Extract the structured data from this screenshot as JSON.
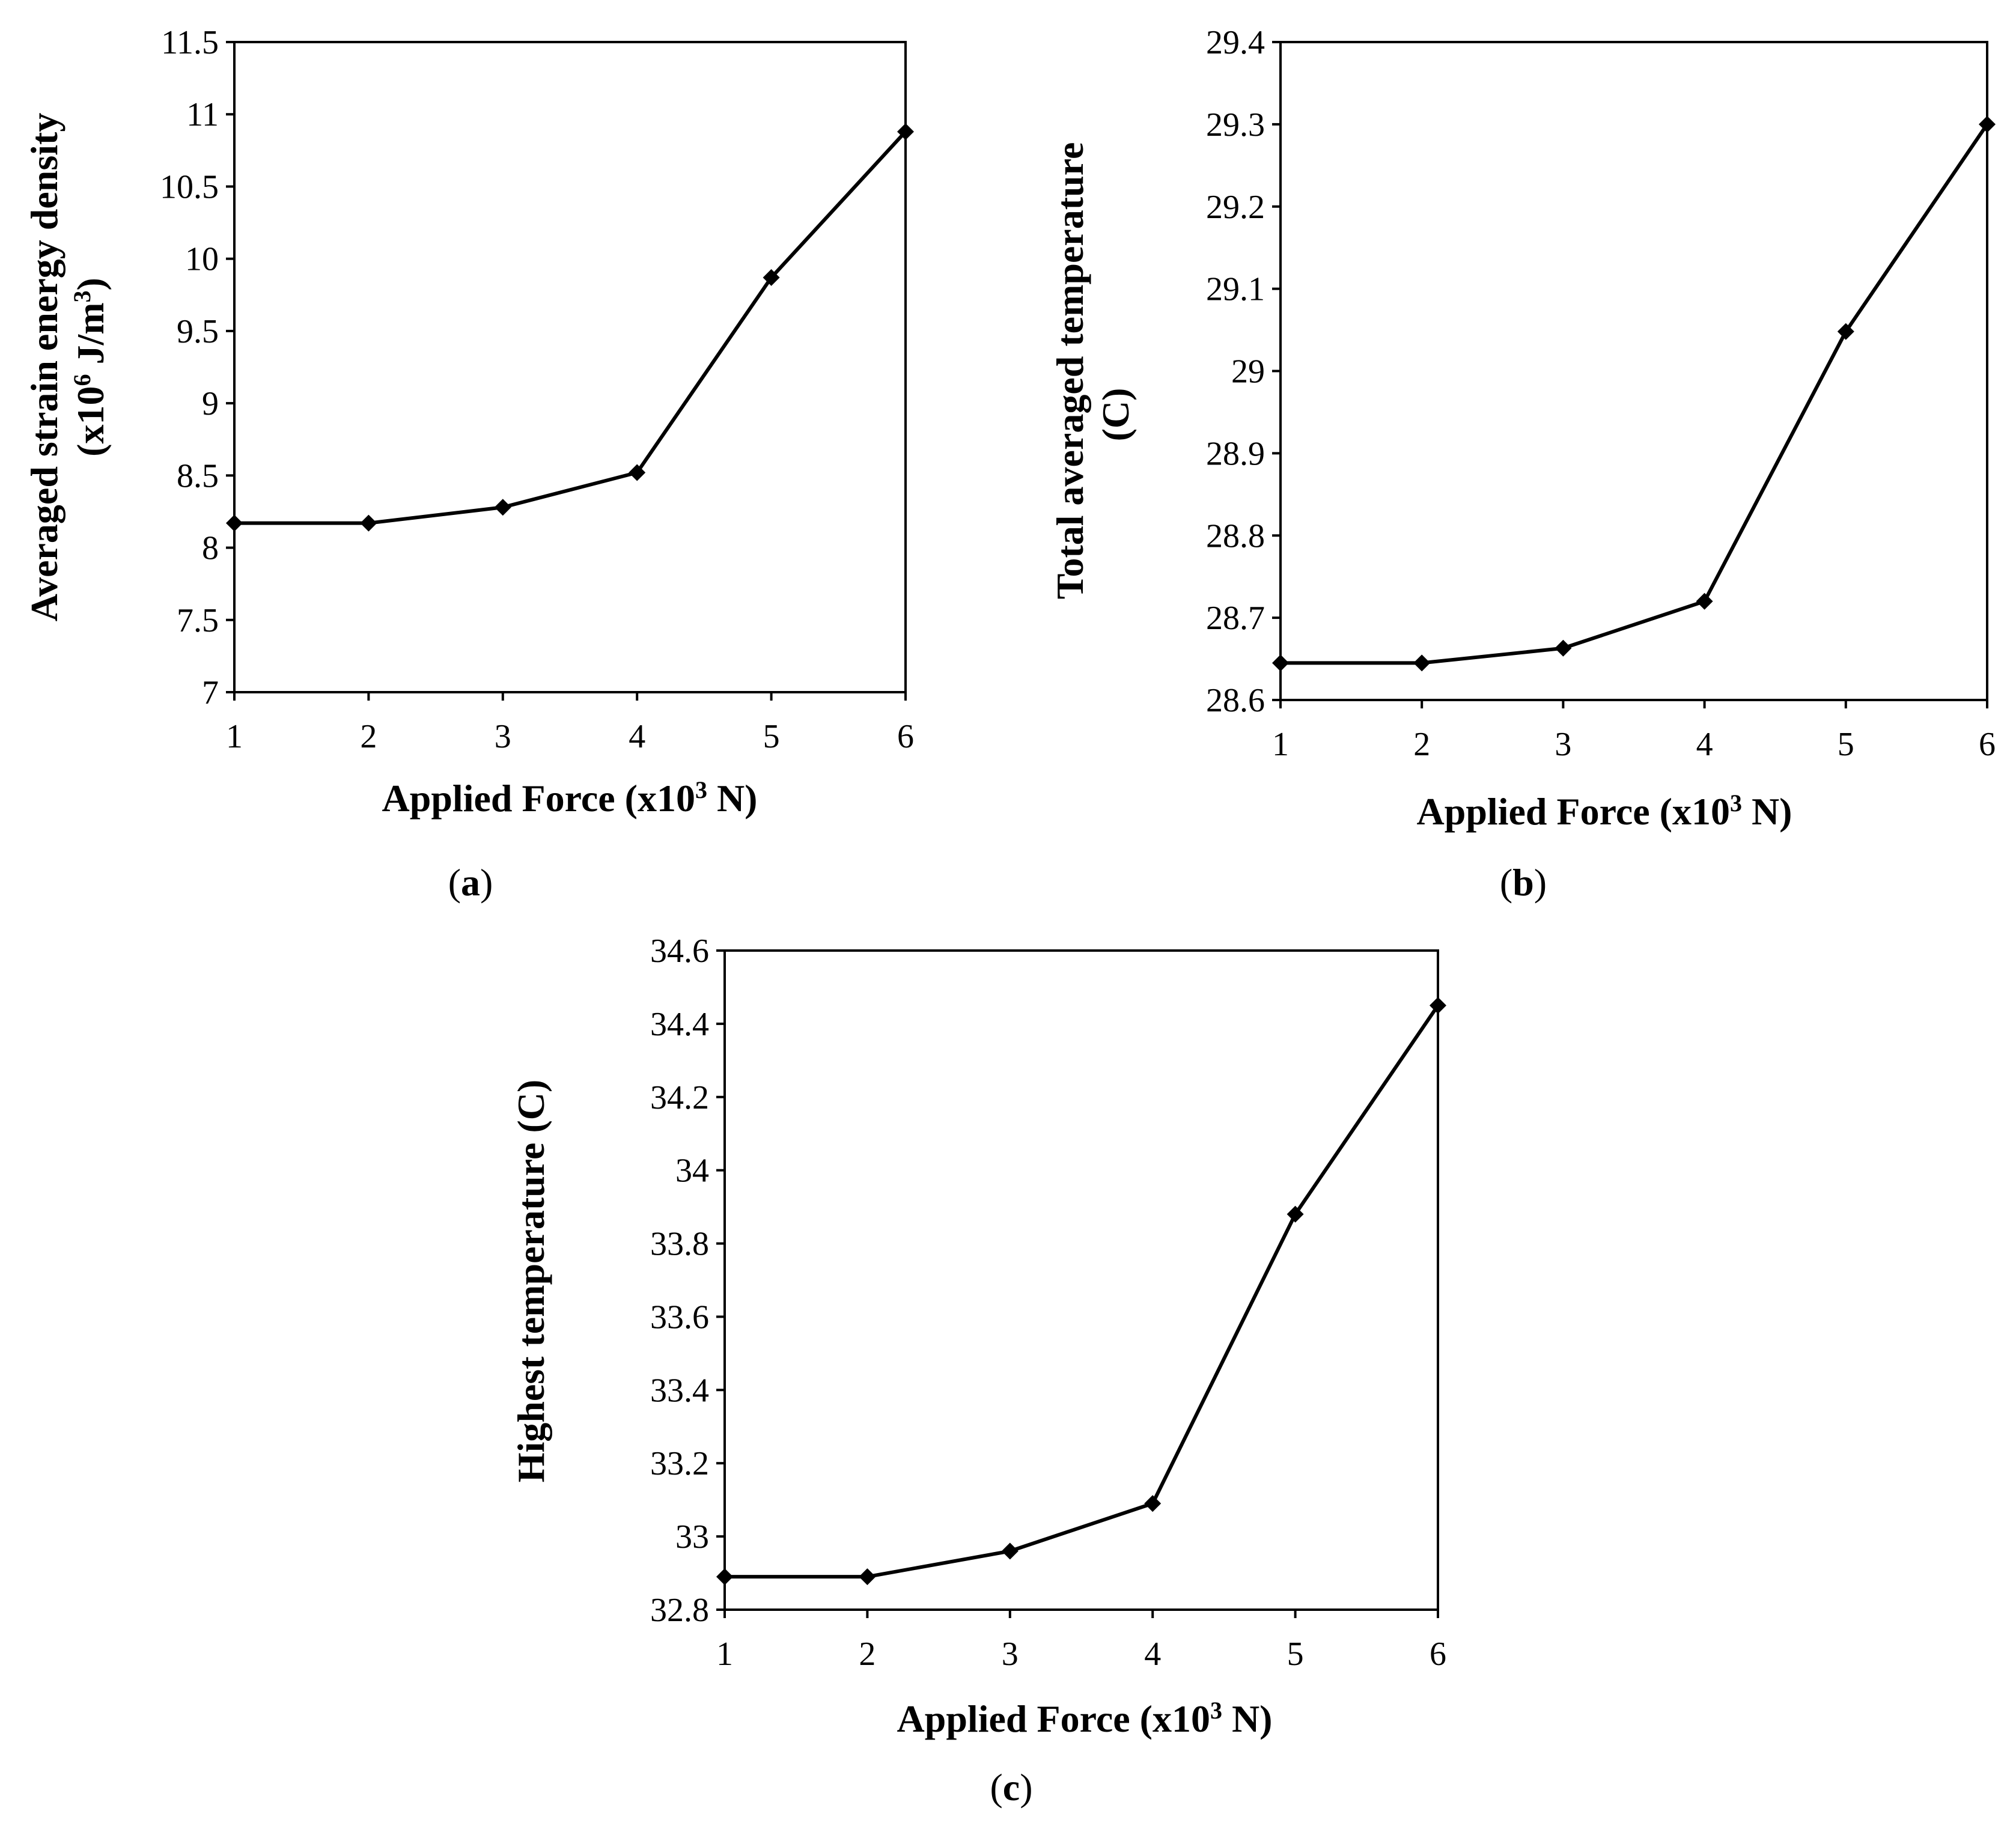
{
  "figure": {
    "panels": [
      {
        "label_open": "(",
        "letter": "a",
        "label_close": ")"
      },
      {
        "label_open": "(",
        "letter": "b",
        "label_close": ")"
      },
      {
        "label_open": "(",
        "letter": "c",
        "label_close": ")"
      }
    ]
  },
  "chart_data": [
    {
      "type": "line",
      "panel": "a",
      "x": [
        1,
        2,
        3,
        4,
        5,
        6
      ],
      "x_tick_labels": [
        "1",
        "2",
        "3",
        "4",
        "5",
        "6"
      ],
      "xlim": [
        1,
        6
      ],
      "xlabel": {
        "prefix": "Applied Force (x10",
        "superscript": "3",
        "suffix": " N)"
      },
      "series": [
        {
          "name": "Averaged strain energy density",
          "values": [
            8.17,
            8.17,
            8.28,
            8.52,
            9.87,
            10.88
          ],
          "color": "#000000",
          "marker": "diamond"
        }
      ],
      "ylim": [
        7,
        11.5
      ],
      "y_ticks": [
        7,
        7.5,
        8,
        8.5,
        9,
        9.5,
        10,
        10.5,
        11,
        11.5
      ],
      "y_tick_labels": [
        "7",
        "7.5",
        "8",
        "8.5",
        "9",
        "9.5",
        "10",
        "10.5",
        "11",
        "11.5"
      ],
      "ylabel_line1": "Averaged strain energy density",
      "ylabel_line2": {
        "prefix": "(x10",
        "superscript1": "6",
        "middle": " J/m",
        "superscript2": "3",
        "suffix": ")"
      },
      "grid": false
    },
    {
      "type": "line",
      "panel": "b",
      "x": [
        1,
        2,
        3,
        4,
        5,
        6
      ],
      "x_tick_labels": [
        "1",
        "2",
        "3",
        "4",
        "5",
        "6"
      ],
      "xlim": [
        1,
        6
      ],
      "xlabel": {
        "prefix": "Applied Force (x10",
        "superscript": "3",
        "suffix": " N)"
      },
      "series": [
        {
          "name": "Total averaged temperature",
          "values": [
            28.645,
            28.645,
            28.663,
            28.72,
            29.048,
            29.3
          ],
          "color": "#000000",
          "marker": "diamond"
        }
      ],
      "ylim": [
        28.6,
        29.4
      ],
      "y_ticks": [
        28.6,
        28.7,
        28.8,
        28.9,
        29,
        29.1,
        29.2,
        29.3,
        29.4
      ],
      "y_tick_labels": [
        "28.6",
        "28.7",
        "28.8",
        "28.9",
        "29",
        "29.1",
        "29.2",
        "29.3",
        "29.4"
      ],
      "ylabel_line1": "Total averaged temperature",
      "ylabel_line2": "(C)",
      "grid": false
    },
    {
      "type": "line",
      "panel": "c",
      "x": [
        1,
        2,
        3,
        4,
        5,
        6
      ],
      "x_tick_labels": [
        "1",
        "2",
        "3",
        "4",
        "5",
        "6"
      ],
      "xlim": [
        1,
        6
      ],
      "xlabel": {
        "prefix": "Applied Force (x10",
        "superscript": "3",
        "suffix": " N)"
      },
      "series": [
        {
          "name": "Highest temperature",
          "values": [
            32.89,
            32.89,
            32.96,
            33.09,
            33.88,
            34.45
          ],
          "color": "#000000",
          "marker": "diamond"
        }
      ],
      "ylim": [
        32.8,
        34.6
      ],
      "y_ticks": [
        32.8,
        33,
        33.2,
        33.4,
        33.6,
        33.8,
        34,
        34.2,
        34.4,
        34.6
      ],
      "y_tick_labels": [
        "32.8",
        "33",
        "33.2",
        "33.4",
        "33.6",
        "33.8",
        "34",
        "34.2",
        "34.4",
        "34.6"
      ],
      "ylabel_line1": "Highest temperature (C)",
      "grid": false
    }
  ]
}
